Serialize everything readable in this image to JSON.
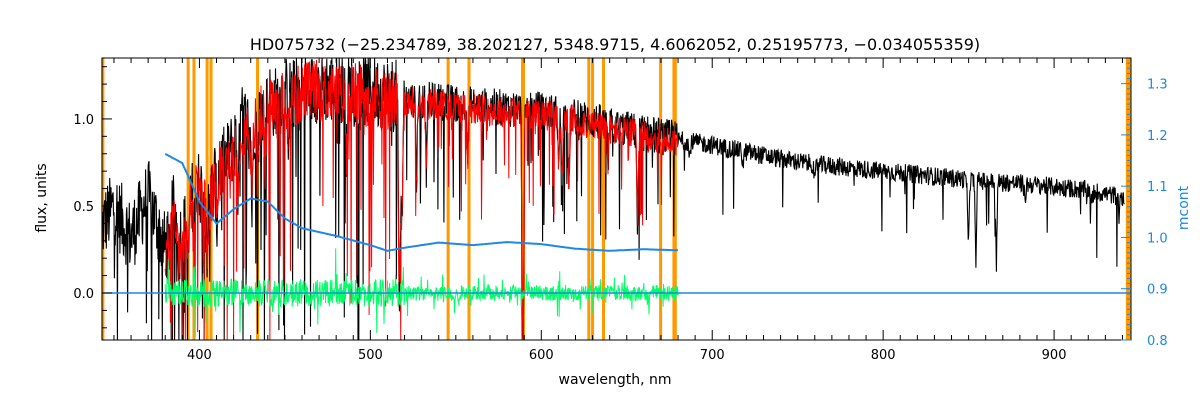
{
  "chart_data": {
    "type": "line",
    "title": "HD075732   (−25.234789, 38.202127, 5348.9715, 4.6062052, 0.25195773, −0.034055359)",
    "xlabel": "wavelength, nm",
    "ylabel": "flux, units",
    "y2label": "mcont",
    "xlim": [
      343,
      945
    ],
    "ylim": [
      -0.27,
      1.35
    ],
    "y2lim": [
      0.8,
      1.35
    ],
    "x_ticks": [
      400,
      500,
      600,
      700,
      800,
      900
    ],
    "y_ticks": [
      0.0,
      0.5,
      1.0
    ],
    "y2_ticks": [
      0.8,
      0.9,
      1.0,
      1.1,
      1.2,
      1.3
    ],
    "x_tick_labels": [
      "400",
      "500",
      "600",
      "700",
      "800",
      "900"
    ],
    "y_tick_labels": [
      "0.0",
      "0.5",
      "1.0"
    ],
    "y2_tick_labels": [
      "0.8",
      "0.9",
      "1.0",
      "1.1",
      "1.2",
      "1.3"
    ],
    "colors": {
      "observed": "#000000",
      "model": "#ff0000",
      "residual": "#00ff66",
      "continuum": "#1e88e5",
      "mask": "#ff9900",
      "axis": "#000000",
      "y2axis": "#1e88e5"
    },
    "masked_wavelengths": [
      343.5,
      393.4,
      396.8,
      404.5,
      406.8,
      434.0,
      545.5,
      557.7,
      589.0,
      589.6,
      627.8,
      630.0,
      636.4,
      669.8,
      677.6,
      678.4
    ],
    "right_mask_band": [
      942,
      945
    ],
    "series": [
      {
        "key": "observed",
        "x": [
          343,
          350,
          360,
          370,
          380,
          385,
          390,
          395,
          400,
          405,
          410,
          415,
          420,
          425,
          430,
          435,
          440,
          445,
          450,
          455,
          460,
          465,
          470,
          480,
          490,
          500,
          510,
          520,
          530,
          540,
          550,
          560,
          570,
          580,
          590,
          600,
          610,
          620,
          630,
          640,
          650,
          660,
          670,
          680,
          700,
          720,
          740,
          760,
          780,
          800,
          820,
          840,
          860,
          880,
          900,
          920,
          940
        ],
        "y": [
          0.38,
          0.5,
          0.32,
          0.56,
          0.25,
          0.48,
          0.3,
          0.55,
          0.62,
          0.48,
          0.71,
          0.75,
          0.85,
          0.99,
          0.95,
          1.03,
          1.12,
          1.09,
          1.15,
          1.14,
          1.18,
          1.16,
          1.2,
          1.17,
          1.18,
          1.16,
          1.14,
          1.12,
          1.11,
          1.1,
          1.09,
          1.08,
          1.07,
          1.06,
          1.06,
          1.05,
          1.03,
          1.01,
          0.99,
          0.96,
          0.94,
          0.92,
          0.9,
          0.88,
          0.85,
          0.81,
          0.77,
          0.74,
          0.72,
          0.7,
          0.68,
          0.66,
          0.64,
          0.63,
          0.61,
          0.59,
          0.55
        ]
      },
      {
        "key": "model",
        "x": [
          380,
          385,
          390,
          395,
          400,
          405,
          410,
          415,
          420,
          425,
          430,
          435,
          440,
          445,
          450,
          455,
          460,
          470,
          480,
          490,
          500,
          520,
          540,
          560,
          580,
          600,
          620,
          640,
          660,
          680
        ],
        "y": [
          0.22,
          0.45,
          0.28,
          0.52,
          0.6,
          0.46,
          0.68,
          0.72,
          0.83,
          0.96,
          0.92,
          1.0,
          1.09,
          1.06,
          1.12,
          1.11,
          1.15,
          1.17,
          1.14,
          1.15,
          1.13,
          1.1,
          1.08,
          1.06,
          1.04,
          1.03,
          0.99,
          0.94,
          0.9,
          0.86
        ]
      },
      {
        "key": "residual",
        "x": [
          380,
          400,
          420,
          440,
          460,
          480,
          500,
          520,
          540,
          560,
          580,
          600,
          620,
          640,
          660,
          680
        ],
        "y": [
          0.0,
          0.0,
          0.0,
          0.0,
          0.0,
          0.0,
          0.0,
          0.0,
          0.0,
          0.0,
          0.0,
          0.0,
          0.0,
          0.0,
          0.0,
          0.0
        ]
      },
      {
        "key": "continuum",
        "axis": "right",
        "x": [
          380,
          390,
          400,
          410,
          420,
          430,
          440,
          450,
          460,
          480,
          500,
          510,
          520,
          540,
          560,
          580,
          600,
          620,
          640,
          660,
          680
        ],
        "y": [
          1.163,
          1.145,
          1.07,
          1.027,
          1.055,
          1.076,
          1.07,
          1.037,
          1.018,
          1.003,
          0.985,
          0.974,
          0.98,
          0.99,
          0.985,
          0.991,
          0.987,
          0.978,
          0.974,
          0.977,
          0.975
        ]
      },
      {
        "key": "zero-line",
        "x": [
          343,
          945
        ],
        "y": [
          0.0,
          0.0
        ]
      }
    ],
    "absorption_lines": [
      {
        "x": 382.0,
        "depth": 0.12,
        "band": "bg"
      },
      {
        "x": 388.0,
        "depth": 0.13,
        "band": "bg"
      },
      {
        "x": 393.4,
        "depth": 0.35,
        "band": "bg"
      },
      {
        "x": 396.8,
        "depth": 0.32,
        "band": "bg"
      },
      {
        "x": 404.5,
        "depth": 0.22,
        "band": "bg"
      },
      {
        "x": 410.2,
        "depth": 0.3,
        "band": "bg"
      },
      {
        "x": 422.7,
        "depth": 0.4,
        "band": "bg"
      },
      {
        "x": 430.8,
        "depth": 0.5,
        "band": "bg"
      },
      {
        "x": 434.0,
        "depth": 0.4,
        "band": "bg"
      },
      {
        "x": 438.4,
        "depth": 0.38,
        "band": "bg"
      },
      {
        "x": 452.0,
        "depth": 0.2,
        "band": "bg"
      },
      {
        "x": 486.1,
        "depth": 0.42,
        "band": "bg"
      },
      {
        "x": 516.7,
        "depth": 0.75,
        "band": "bg"
      },
      {
        "x": 517.3,
        "depth": 0.8,
        "band": "bg"
      },
      {
        "x": 518.4,
        "depth": 0.82,
        "band": "bg"
      },
      {
        "x": 527.0,
        "depth": 0.45,
        "band": "bg"
      },
      {
        "x": 532.8,
        "depth": 0.4,
        "band": "bg"
      },
      {
        "x": 557.0,
        "depth": 0.3,
        "band": "bg"
      },
      {
        "x": 589.0,
        "depth": 1.0,
        "band": "bg"
      },
      {
        "x": 589.6,
        "depth": 0.9,
        "band": "bg"
      },
      {
        "x": 610.2,
        "depth": 0.3,
        "band": "bg"
      },
      {
        "x": 612.2,
        "depth": 0.35,
        "band": "bg"
      },
      {
        "x": 616.2,
        "depth": 0.38,
        "band": "bg"
      },
      {
        "x": 639.0,
        "depth": 0.2,
        "band": "bg"
      },
      {
        "x": 656.3,
        "depth": 0.55,
        "band": "bg"
      },
      {
        "x": 686.7,
        "depth": 0.1,
        "band": "bg"
      },
      {
        "x": 718.0,
        "depth": 0.08,
        "band": "bg"
      },
      {
        "x": 760.0,
        "depth": 0.12,
        "band": "bg"
      },
      {
        "x": 849.8,
        "depth": 0.38,
        "band": "bg"
      },
      {
        "x": 854.2,
        "depth": 0.45,
        "band": "bg"
      },
      {
        "x": 866.2,
        "depth": 0.44,
        "band": "bg"
      },
      {
        "x": 883.0,
        "depth": 0.1,
        "band": "bg"
      },
      {
        "x": 922.0,
        "depth": 0.08,
        "band": "bg"
      },
      {
        "x": 938.0,
        "depth": 0.12,
        "band": "bg"
      }
    ]
  }
}
